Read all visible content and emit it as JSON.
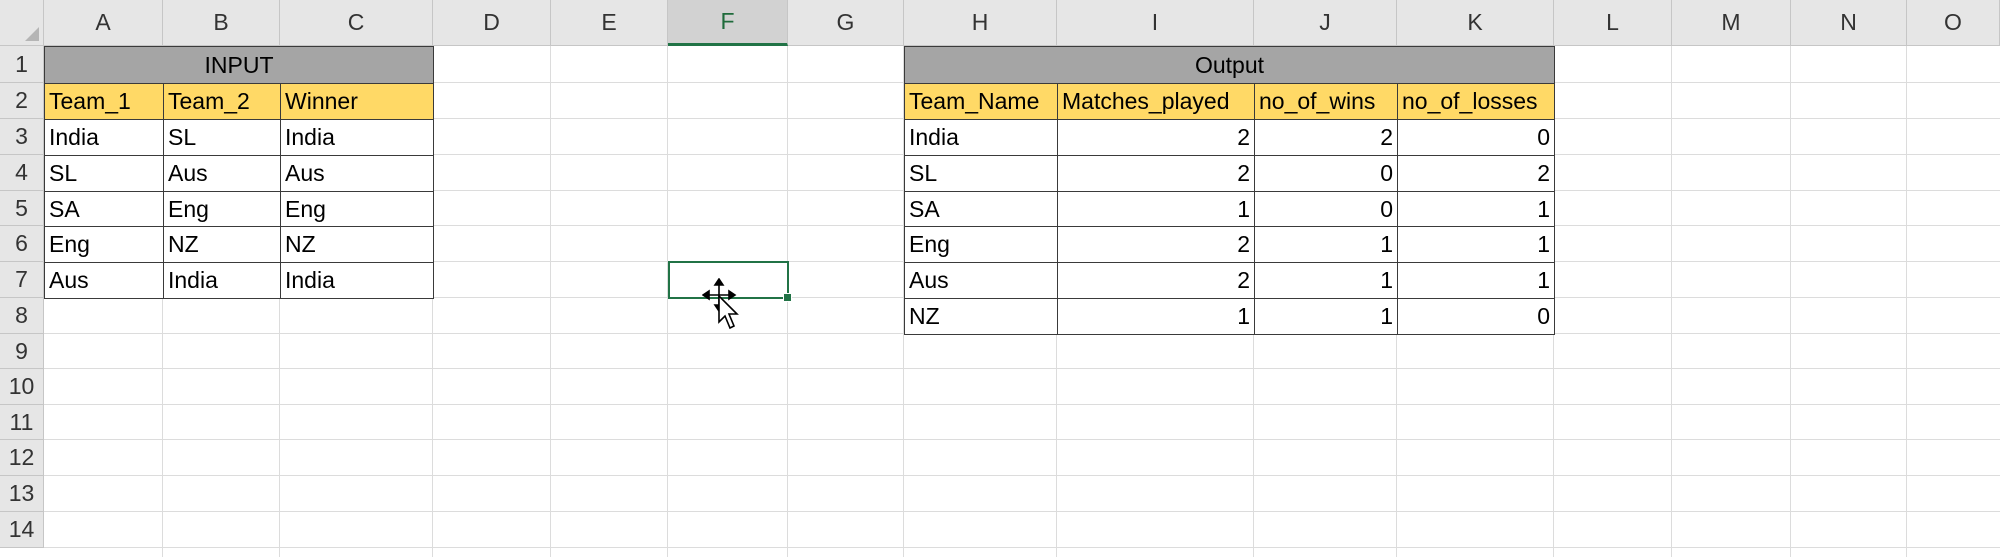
{
  "columns": [
    "A",
    "B",
    "C",
    "D",
    "E",
    "F",
    "G",
    "H",
    "I",
    "J",
    "K",
    "L",
    "M",
    "N",
    "O"
  ],
  "rows": [
    "1",
    "2",
    "3",
    "4",
    "5",
    "6",
    "7",
    "8",
    "9",
    "10",
    "11",
    "12",
    "13",
    "14"
  ],
  "selected_column": "F",
  "input_table": {
    "title": "INPUT",
    "headers": [
      "Team_1",
      "Team_2",
      "Winner"
    ],
    "rows": [
      [
        "India",
        "SL",
        "India"
      ],
      [
        "SL",
        "Aus",
        "Aus"
      ],
      [
        "SA",
        "Eng",
        "Eng"
      ],
      [
        "Eng",
        "NZ",
        "NZ"
      ],
      [
        "Aus",
        "India",
        "India"
      ]
    ]
  },
  "output_table": {
    "title": "Output",
    "headers": [
      "Team_Name",
      "Matches_played",
      "no_of_wins",
      "no_of_losses"
    ],
    "rows": [
      [
        "India",
        "2",
        "2",
        "0"
      ],
      [
        "SL",
        "2",
        "0",
        "2"
      ],
      [
        "SA",
        "1",
        "0",
        "1"
      ],
      [
        "Eng",
        "2",
        "1",
        "1"
      ],
      [
        "Aus",
        "2",
        "1",
        "1"
      ],
      [
        "NZ",
        "1",
        "1",
        "0"
      ]
    ]
  },
  "colors": {
    "title_fill": "#a5a5a5",
    "header_fill": "#ffd966",
    "selection": "#217346"
  }
}
